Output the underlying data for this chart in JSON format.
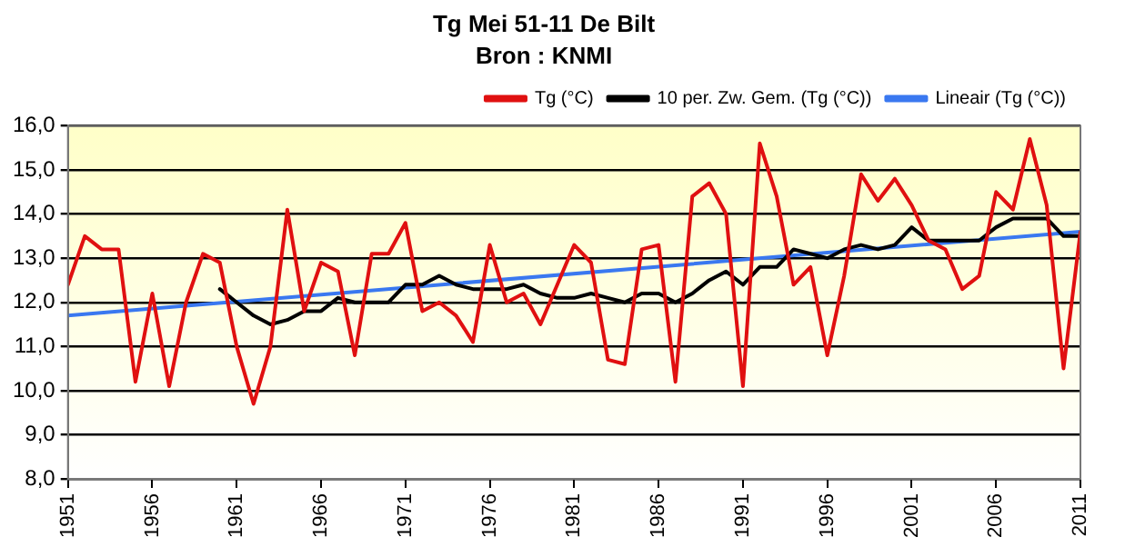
{
  "chart_data": {
    "type": "line",
    "title": "Tg Mei 51-11 De Bilt",
    "subtitle": "Bron : KNMI",
    "x": [
      1951,
      1952,
      1953,
      1954,
      1955,
      1956,
      1957,
      1958,
      1959,
      1960,
      1961,
      1962,
      1963,
      1964,
      1965,
      1966,
      1967,
      1968,
      1969,
      1970,
      1971,
      1972,
      1973,
      1974,
      1975,
      1976,
      1977,
      1978,
      1979,
      1980,
      1981,
      1982,
      1983,
      1984,
      1985,
      1986,
      1987,
      1988,
      1989,
      1990,
      1991,
      1992,
      1993,
      1994,
      1995,
      1996,
      1997,
      1998,
      1999,
      2000,
      2001,
      2002,
      2003,
      2004,
      2005,
      2006,
      2007,
      2008,
      2009,
      2010,
      2011
    ],
    "series": [
      {
        "name": "Tg (°C)",
        "color": "#e01010",
        "values": [
          12.4,
          13.5,
          13.2,
          13.2,
          10.2,
          12.2,
          10.1,
          12.0,
          13.1,
          12.9,
          11.0,
          9.7,
          11.0,
          14.1,
          11.8,
          12.9,
          12.7,
          10.8,
          13.1,
          13.1,
          13.8,
          11.8,
          12.0,
          11.7,
          11.1,
          13.3,
          12.0,
          12.2,
          11.5,
          12.4,
          13.3,
          12.9,
          10.7,
          10.6,
          13.2,
          13.3,
          10.2,
          14.4,
          14.7,
          14.0,
          10.1,
          15.6,
          14.4,
          12.4,
          12.8,
          10.8,
          12.6,
          14.9,
          14.3,
          14.8,
          14.2,
          13.4,
          13.2,
          12.3,
          12.6,
          14.5,
          14.1,
          15.7,
          14.2,
          10.5,
          13.6
        ]
      },
      {
        "name": "10 per. Zw. Gem. (Tg (°C))",
        "color": "#000000",
        "values": [
          null,
          null,
          null,
          null,
          null,
          null,
          null,
          null,
          null,
          12.3,
          12.0,
          11.7,
          11.5,
          11.6,
          11.8,
          11.8,
          12.1,
          12.0,
          12.0,
          12.0,
          12.4,
          12.4,
          12.6,
          12.4,
          12.3,
          12.3,
          12.3,
          12.4,
          12.2,
          12.1,
          12.1,
          12.2,
          12.1,
          12.0,
          12.2,
          12.2,
          12.0,
          12.2,
          12.5,
          12.7,
          12.4,
          12.8,
          12.8,
          13.2,
          13.1,
          13.0,
          13.2,
          13.3,
          13.2,
          13.3,
          13.7,
          13.4,
          13.4,
          13.4,
          13.4,
          13.7,
          13.9,
          13.9,
          13.9,
          13.5,
          13.5
        ]
      },
      {
        "name": "Lineair (Tg (°C))",
        "color": "#3a78f0",
        "x": [
          1951,
          2011
        ],
        "values": [
          11.7,
          13.6
        ]
      }
    ],
    "xlim": [
      1951,
      2011
    ],
    "xticks": [
      1951,
      1956,
      1961,
      1966,
      1971,
      1976,
      1981,
      1986,
      1991,
      1996,
      2001,
      2006,
      2011
    ],
    "ylim": [
      8,
      16
    ],
    "yticks": [
      {
        "value": 8,
        "label": "8,0"
      },
      {
        "value": 9,
        "label": "9,0"
      },
      {
        "value": 10,
        "label": "10,0"
      },
      {
        "value": 11,
        "label": "11,0"
      },
      {
        "value": 12,
        "label": "12,0"
      },
      {
        "value": 13,
        "label": "13,0"
      },
      {
        "value": 14,
        "label": "14,0"
      },
      {
        "value": 15,
        "label": "15,0"
      },
      {
        "value": 16,
        "label": "16,0"
      }
    ],
    "grid": "y",
    "legend": "top right",
    "marker": "none",
    "line_style": "solid"
  }
}
